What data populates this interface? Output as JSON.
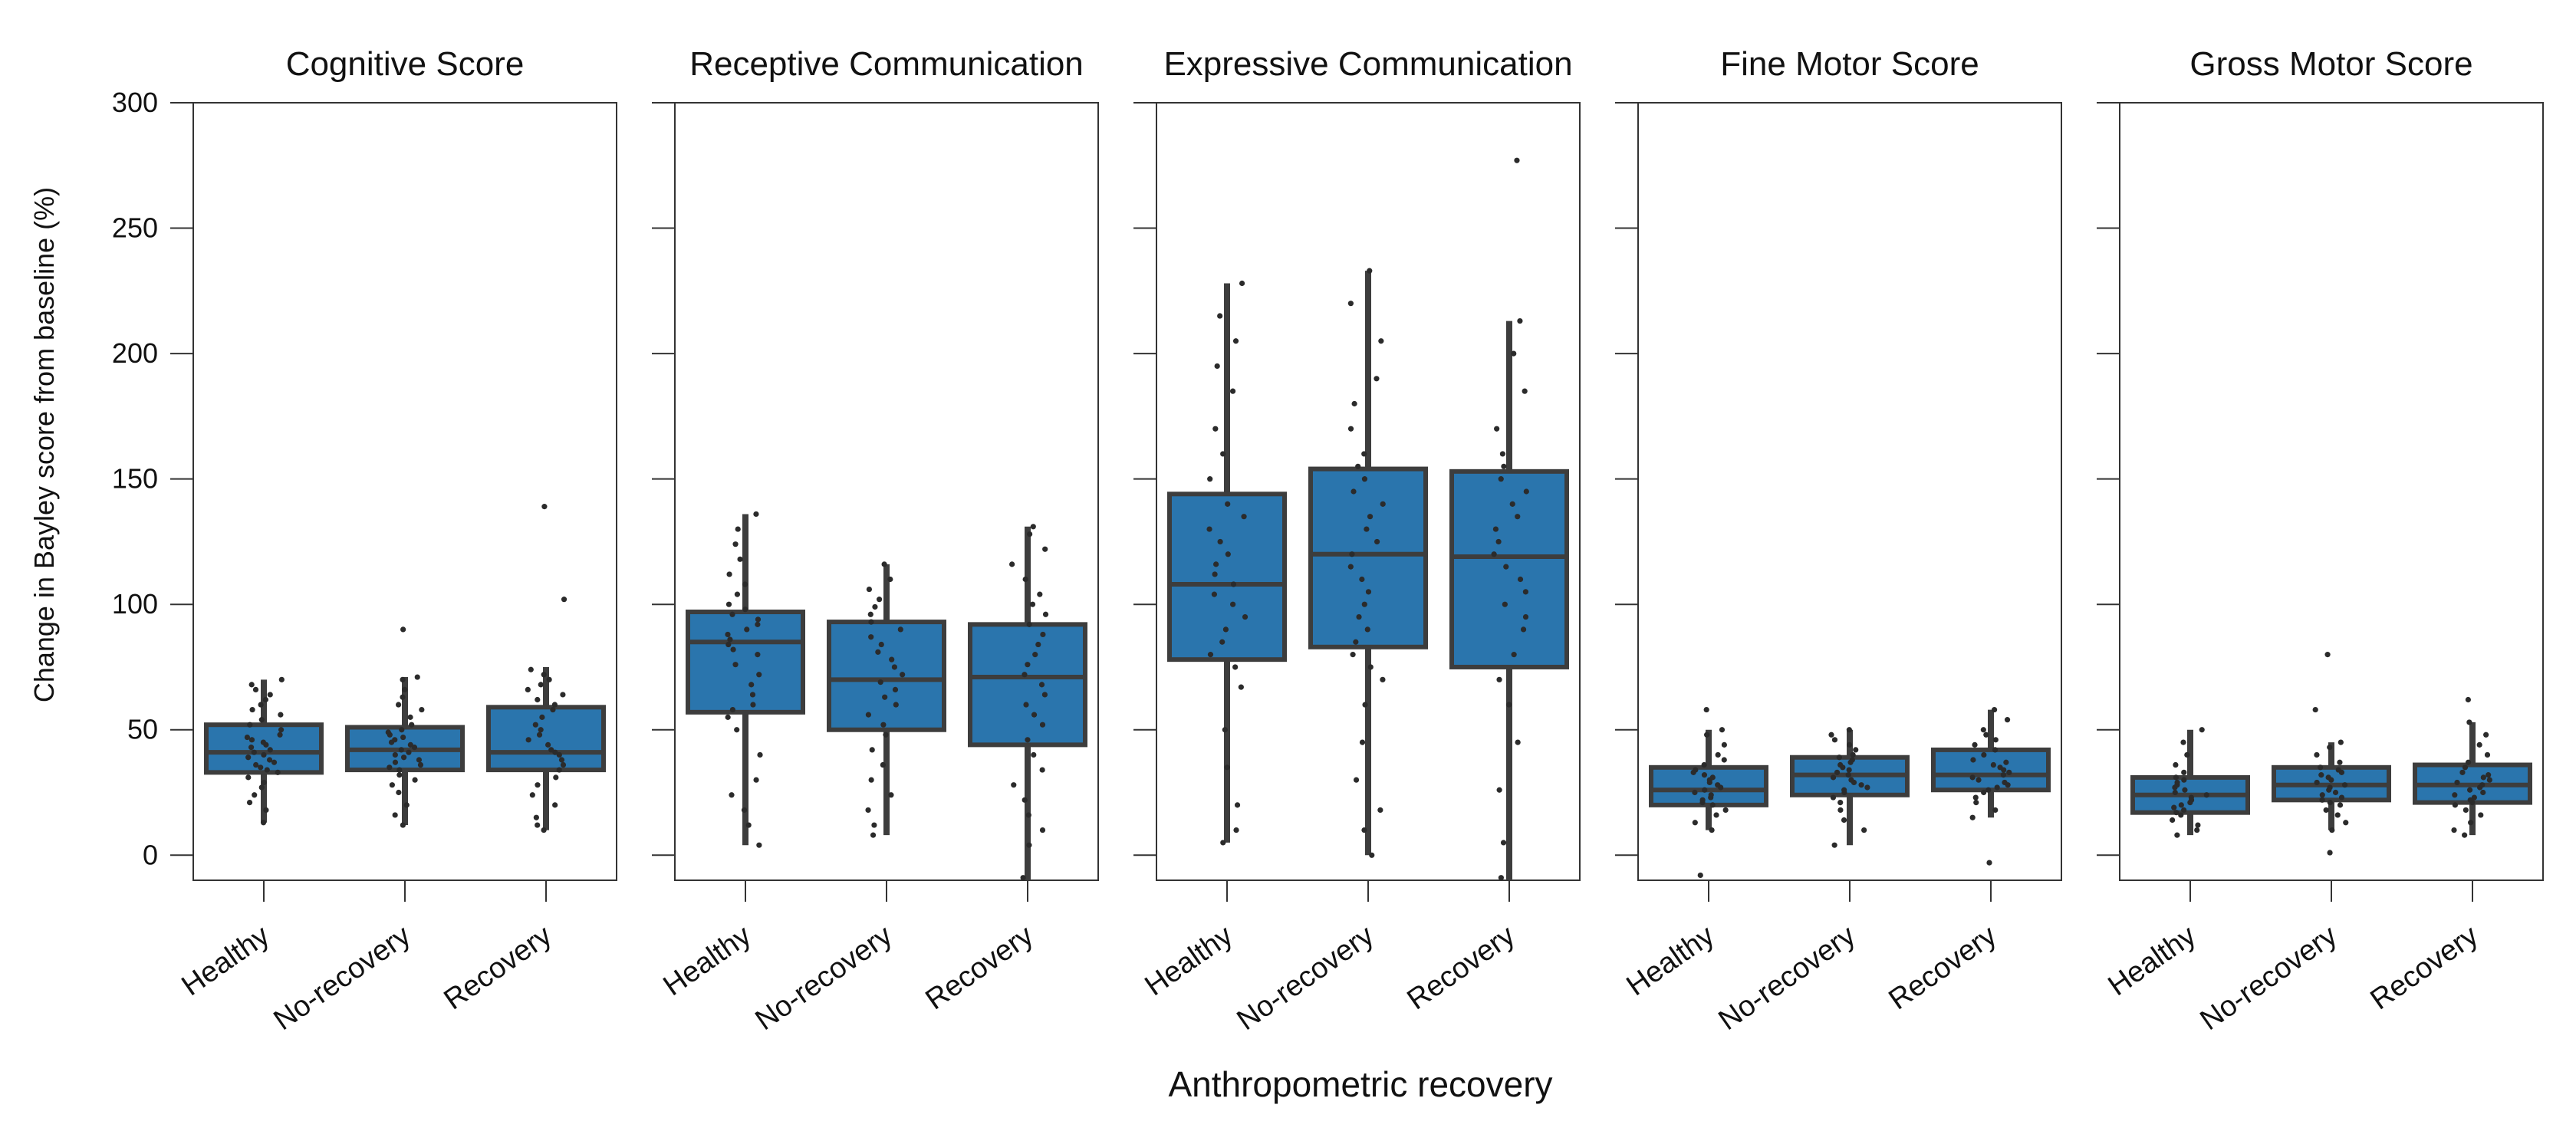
{
  "chart_data": {
    "type": "box",
    "xlabel": "Anthropometric recovery",
    "ylabel": "Change in Bayley score from baseline (%)",
    "ylim": [
      -10,
      300
    ],
    "yticks": [
      0,
      50,
      100,
      150,
      200,
      250,
      300
    ],
    "categories": [
      "Healthy",
      "No-recovery",
      "Recovery"
    ],
    "colors": {
      "box_fill": "#2a75ad",
      "box_edge": "#3d3d3d",
      "points": "#2b2b2b"
    },
    "panels": [
      {
        "title": "Cognitive Score",
        "boxes": [
          {
            "category": "Healthy",
            "whisker_low": 13,
            "q1": 33,
            "median": 41,
            "q3": 52,
            "whisker_high": 70,
            "points": [
              13,
              18,
              21,
              24,
              27,
              29,
              31,
              33,
              34,
              35,
              36,
              37,
              38,
              39,
              40,
              41,
              42,
              43,
              44,
              45,
              46,
              47,
              48,
              50,
              52,
              54,
              56,
              58,
              60,
              62,
              64,
              66,
              68,
              70
            ]
          },
          {
            "category": "No-recovery",
            "whisker_low": 12,
            "q1": 34,
            "median": 42,
            "q3": 51,
            "whisker_high": 71,
            "points": [
              12,
              16,
              20,
              25,
              28,
              30,
              32,
              34,
              35,
              36,
              37,
              38,
              39,
              40,
              41,
              42,
              43,
              44,
              45,
              46,
              47,
              48,
              49,
              50,
              52,
              55,
              58,
              60,
              63,
              66,
              70,
              71,
              90
            ]
          },
          {
            "category": "Recovery",
            "whisker_low": 10,
            "q1": 34,
            "median": 41,
            "q3": 59,
            "whisker_high": 75,
            "points": [
              10,
              12,
              15,
              20,
              24,
              28,
              31,
              34,
              36,
              38,
              40,
              41,
              42,
              44,
              46,
              48,
              50,
              52,
              55,
              58,
              60,
              62,
              64,
              66,
              68,
              70,
              72,
              74,
              102,
              139
            ]
          }
        ]
      },
      {
        "title": "Receptive Communication",
        "boxes": [
          {
            "category": "Healthy",
            "whisker_low": 4,
            "q1": 57,
            "median": 85,
            "q3": 97,
            "whisker_high": 136,
            "points": [
              4,
              12,
              18,
              24,
              30,
              40,
              50,
              55,
              58,
              60,
              64,
              68,
              72,
              76,
              80,
              82,
              84,
              86,
              88,
              90,
              92,
              94,
              96,
              98,
              100,
              104,
              108,
              112,
              118,
              124,
              130,
              136
            ]
          },
          {
            "category": "No-recovery",
            "whisker_low": 8,
            "q1": 50,
            "median": 70,
            "q3": 93,
            "whisker_high": 116,
            "points": [
              8,
              12,
              18,
              24,
              30,
              36,
              42,
              48,
              52,
              56,
              60,
              63,
              66,
              69,
              72,
              75,
              78,
              81,
              84,
              87,
              90,
              93,
              96,
              99,
              102,
              106,
              110,
              116
            ]
          },
          {
            "category": "Recovery",
            "whisker_low": -10,
            "q1": 44,
            "median": 71,
            "q3": 92,
            "whisker_high": 131,
            "points": [
              -9,
              4,
              10,
              16,
              22,
              28,
              34,
              40,
              46,
              52,
              56,
              60,
              64,
              68,
              72,
              76,
              80,
              84,
              88,
              92,
              96,
              100,
              104,
              110,
              116,
              122,
              128,
              131
            ]
          }
        ]
      },
      {
        "title": "Expressive Communication",
        "boxes": [
          {
            "category": "Healthy",
            "whisker_low": 5,
            "q1": 78,
            "median": 108,
            "q3": 144,
            "whisker_high": 228,
            "points": [
              5,
              10,
              20,
              35,
              50,
              67,
              75,
              80,
              85,
              90,
              95,
              100,
              104,
              108,
              112,
              116,
              120,
              125,
              130,
              135,
              140,
              150,
              160,
              170,
              185,
              195,
              205,
              215,
              228
            ]
          },
          {
            "category": "No-recovery",
            "whisker_low": 0,
            "q1": 83,
            "median": 120,
            "q3": 154,
            "whisker_high": 233,
            "points": [
              0,
              10,
              18,
              30,
              45,
              60,
              70,
              75,
              80,
              85,
              90,
              95,
              100,
              105,
              110,
              115,
              120,
              125,
              130,
              135,
              140,
              145,
              150,
              155,
              160,
              170,
              180,
              190,
              205,
              220,
              233
            ]
          },
          {
            "category": "Recovery",
            "whisker_low": -10,
            "q1": 75,
            "median": 119,
            "q3": 153,
            "whisker_high": 213,
            "points": [
              -9,
              5,
              26,
              45,
              60,
              70,
              80,
              90,
              95,
              100,
              105,
              110,
              115,
              120,
              125,
              130,
              135,
              140,
              145,
              150,
              155,
              160,
              170,
              185,
              200,
              213,
              277
            ]
          }
        ]
      },
      {
        "title": "Fine Motor Score",
        "boxes": [
          {
            "category": "Healthy",
            "whisker_low": 10,
            "q1": 20,
            "median": 26,
            "q3": 35,
            "whisker_high": 50,
            "points": [
              -8,
              10,
              13,
              16,
              18,
              20,
              21,
              22,
              23,
              24,
              25,
              26,
              27,
              28,
              29,
              30,
              31,
              32,
              33,
              34,
              36,
              38,
              40,
              44,
              48,
              50,
              58
            ]
          },
          {
            "category": "No-recovery",
            "whisker_low": 4,
            "q1": 24,
            "median": 32,
            "q3": 39,
            "whisker_high": 50,
            "points": [
              4,
              10,
              14,
              18,
              21,
              23,
              25,
              26,
              27,
              28,
              29,
              30,
              31,
              32,
              33,
              34,
              35,
              36,
              37,
              38,
              39,
              40,
              42,
              44,
              46,
              48,
              50
            ]
          },
          {
            "category": "Recovery",
            "whisker_low": 15,
            "q1": 26,
            "median": 32,
            "q3": 42,
            "whisker_high": 58,
            "points": [
              -3,
              15,
              18,
              21,
              23,
              25,
              26,
              27,
              28,
              29,
              30,
              31,
              32,
              33,
              34,
              35,
              36,
              37,
              38,
              40,
              42,
              44,
              46,
              48,
              50,
              54,
              58
            ]
          }
        ]
      },
      {
        "title": "Gross Motor Score",
        "boxes": [
          {
            "category": "Healthy",
            "whisker_low": 8,
            "q1": 17,
            "median": 24,
            "q3": 31,
            "whisker_high": 50,
            "points": [
              8,
              10,
              12,
              14,
              16,
              17,
              18,
              19,
              20,
              21,
              22,
              23,
              24,
              25,
              26,
              27,
              28,
              29,
              30,
              31,
              33,
              36,
              40,
              45,
              50
            ]
          },
          {
            "category": "No-recovery",
            "whisker_low": 10,
            "q1": 22,
            "median": 28,
            "q3": 35,
            "whisker_high": 45,
            "points": [
              1,
              10,
              13,
              16,
              18,
              20,
              21,
              22,
              23,
              24,
              25,
              26,
              27,
              28,
              29,
              30,
              31,
              32,
              33,
              34,
              35,
              37,
              40,
              43,
              45,
              58,
              80
            ]
          },
          {
            "category": "Recovery",
            "whisker_low": 8,
            "q1": 21,
            "median": 28,
            "q3": 36,
            "whisker_high": 53,
            "points": [
              8,
              10,
              13,
              16,
              18,
              20,
              21,
              22,
              23,
              24,
              25,
              26,
              27,
              28,
              29,
              30,
              31,
              32,
              33,
              35,
              37,
              40,
              44,
              48,
              53,
              62
            ]
          }
        ]
      }
    ]
  }
}
